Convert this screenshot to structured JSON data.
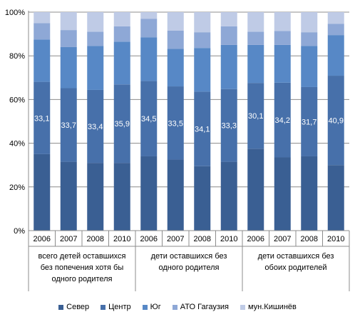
{
  "chart_data": {
    "type": "bar",
    "stacked": true,
    "percent": true,
    "title": "",
    "xlabel": "",
    "ylabel": "",
    "ylim": [
      0,
      100
    ],
    "yticks": [
      "0%",
      "20%",
      "40%",
      "60%",
      "80%",
      "100%"
    ],
    "grid": true,
    "legend_position": "bottom",
    "categories": [
      "2006",
      "2007",
      "2008",
      "2010",
      "2006",
      "2007",
      "2008",
      "2010",
      "2006",
      "2007",
      "2008",
      "2010"
    ],
    "groups": [
      {
        "label_lines": [
          "всего детей оставшихся",
          "без попечения хотя бы",
          "одного родителя"
        ]
      },
      {
        "label_lines": [
          "дети оставшихся без",
          "одного родителя"
        ]
      },
      {
        "label_lines": [
          "дети оставшихся без",
          "обоих родителей"
        ]
      }
    ],
    "series": [
      {
        "name": "Север",
        "color": "#3a5f93",
        "values": [
          35,
          31.5,
          31,
          31,
          34,
          32.5,
          29.5,
          31.5,
          37.5,
          33.5,
          34,
          30
        ]
      },
      {
        "name": "Центр",
        "color": "#4770aa",
        "values": [
          33.1,
          33.7,
          33.4,
          35.9,
          34.5,
          33.5,
          34.1,
          33.3,
          30.1,
          34.2,
          31.7,
          40.9
        ],
        "data_labels": [
          "33,1",
          "33,7",
          "33,4",
          "35,9",
          "34,5",
          "33,5",
          "34,1",
          "33,3",
          "30,1",
          "34,2",
          "31,7",
          "40,9"
        ]
      },
      {
        "name": "Юг",
        "color": "#5788c6",
        "values": [
          19.4,
          18.8,
          20.1,
          19.6,
          20,
          17.2,
          20,
          20.2,
          17.4,
          17.3,
          18.8,
          18.6
        ]
      },
      {
        "name": "АТО Гагаузия",
        "color": "#8ea8d6",
        "values": [
          7.5,
          7.8,
          6.5,
          7,
          8.5,
          8.3,
          7.2,
          8.5,
          6,
          6.4,
          6.3,
          5.2
        ]
      },
      {
        "name": "мун.Кишинёв",
        "color": "#bfcbe6",
        "values": [
          5,
          8.2,
          9,
          6.5,
          3,
          8.5,
          9.2,
          6.5,
          9,
          8.6,
          9.2,
          5.3
        ]
      }
    ]
  }
}
